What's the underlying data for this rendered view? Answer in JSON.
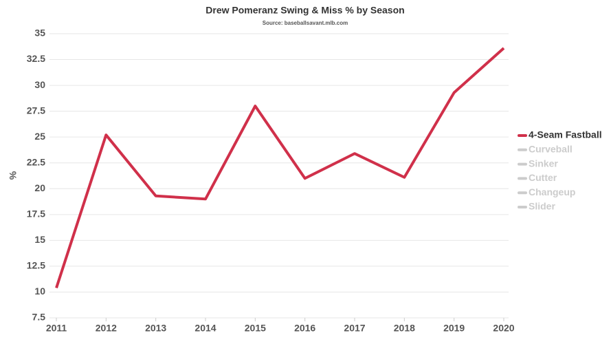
{
  "chart_data": {
    "type": "line",
    "title": "Drew Pomeranz Swing & Miss % by Season",
    "subtitle": "Source: baseballsavant.mlb.com",
    "y_label": "%",
    "x": [
      2011,
      2012,
      2013,
      2014,
      2015,
      2016,
      2017,
      2018,
      2019,
      2020
    ],
    "xlim": [
      2011,
      2020
    ],
    "xticks": [
      2011,
      2012,
      2013,
      2014,
      2015,
      2016,
      2017,
      2018,
      2019,
      2020
    ],
    "ylim": [
      7.5,
      35
    ],
    "yticks": [
      7.5,
      10,
      12.5,
      15,
      17.5,
      20,
      22.5,
      25,
      27.5,
      30,
      32.5,
      35
    ],
    "grid": true,
    "legend": "right",
    "series": [
      {
        "name": "4-Seam Fastball",
        "color": "#d0304a",
        "values": [
          10.4,
          25.2,
          19.3,
          19.0,
          28.0,
          21.0,
          23.4,
          21.1,
          29.3,
          33.6
        ]
      },
      {
        "name": "Curveball",
        "color": "#cccccc",
        "hidden": true
      },
      {
        "name": "Sinker",
        "color": "#cccccc",
        "hidden": true
      },
      {
        "name": "Cutter",
        "color": "#cccccc",
        "hidden": true
      },
      {
        "name": "Changeup",
        "color": "#cccccc",
        "hidden": true
      },
      {
        "name": "Slider",
        "color": "#cccccc",
        "hidden": true
      }
    ]
  }
}
